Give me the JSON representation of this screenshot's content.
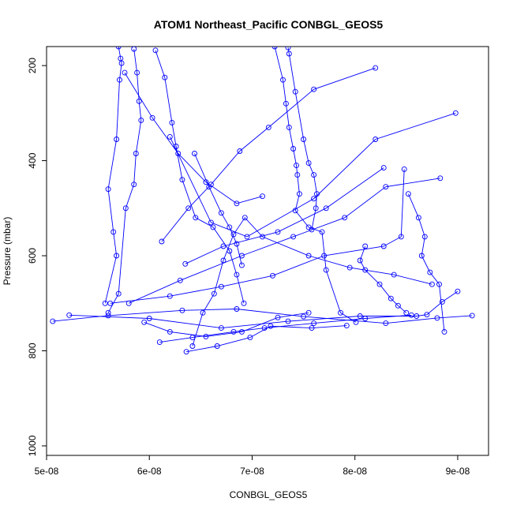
{
  "chart_data": {
    "type": "line",
    "title": "ATOM1 Northeast_Pacific CONBGL_GEOS5",
    "xlabel": "CONBGL_GEOS5",
    "ylabel": "Pressure (mbar)",
    "xlim": [
      5e-08,
      9.3e-08
    ],
    "ylim": [
      1020,
      160
    ],
    "y_reversed": true,
    "x_ticks": [
      5e-08,
      6e-08,
      7e-08,
      8e-08,
      9e-08
    ],
    "x_tick_labels": [
      "5e-08",
      "6e-08",
      "7e-08",
      "8e-08",
      "9e-08"
    ],
    "y_ticks": [
      200,
      400,
      600,
      800,
      1000
    ],
    "y_tick_labels": [
      "200",
      "400",
      "600",
      "800",
      "1000"
    ],
    "grid": false,
    "legend": "none",
    "colors": {
      "series": "#0000ff",
      "axes": "#000000",
      "background": "#ffffff"
    },
    "marker": "open-circle",
    "series": [
      {
        "x": [
          5.7e-08,
          5.72e-08,
          5.73e-08,
          5.71e-08,
          5.68e-08,
          5.6e-08,
          5.65e-08,
          5.68e-08,
          5.57e-08
        ],
        "y": [
          160,
          185,
          195,
          230,
          355,
          460,
          550,
          600,
          700
        ]
      },
      {
        "x": [
          5.85e-08,
          5.88e-08,
          5.9e-08,
          5.92e-08,
          5.87e-08,
          5.85e-08,
          5.77e-08,
          5.7e-08,
          5.6e-08
        ],
        "y": [
          165,
          215,
          275,
          315,
          385,
          450,
          500,
          680,
          720
        ]
      },
      {
        "x": [
          6.06e-08,
          6.15e-08,
          6.22e-08,
          6.26e-08,
          6.32e-08,
          6.45e-08,
          6.62e-08,
          6.78e-08,
          6.85e-08,
          6.92e-08
        ],
        "y": [
          168,
          225,
          320,
          370,
          440,
          520,
          540,
          590,
          640,
          700
        ]
      },
      {
        "x": [
          7.22e-08,
          7.3e-08,
          7.33e-08,
          7.36e-08,
          7.4e-08,
          7.43e-08,
          7.44e-08,
          7.46e-08,
          7.42e-08,
          7.55e-08,
          7.68e-08,
          7.72e-08,
          7.86e-08,
          8.01e-08
        ],
        "y": [
          160,
          230,
          280,
          330,
          375,
          410,
          430,
          470,
          505,
          540,
          550,
          630,
          720,
          740
        ]
      },
      {
        "x": [
          7.35e-08,
          7.36e-08,
          7.42e-08,
          7.5e-08,
          7.55e-08,
          7.6e-08,
          7.63e-08,
          7.62e-08,
          7.58e-08
        ],
        "y": [
          162,
          175,
          255,
          355,
          405,
          430,
          470,
          500,
          545
        ]
      },
      {
        "x": [
          5.06e-08,
          5.6e-08,
          6.32e-08,
          6.85e-08,
          7.5e-08,
          8.3e-08,
          8.8e-08,
          9.14e-08
        ],
        "y": [
          738,
          726,
          715,
          712,
          728,
          742,
          731,
          726
        ]
      },
      {
        "x": [
          5.22e-08,
          6e-08,
          6.7e-08,
          7.35e-08,
          8.05e-08,
          8.6e-08,
          8.7e-08,
          8.85e-08,
          9e-08
        ],
        "y": [
          725,
          732,
          752,
          738,
          727,
          727,
          724,
          697,
          675
        ]
      },
      {
        "x": [
          6.1e-08,
          6.42e-08,
          6.82e-08,
          7.12e-08,
          7.6e-08,
          8.1e-08,
          8.55e-08
        ],
        "y": [
          782,
          772,
          760,
          752,
          742,
          732,
          725
        ]
      },
      {
        "x": [
          6.36e-08,
          6.66e-08,
          6.98e-08,
          7.18e-08,
          7.58e-08,
          7.92e-08
        ],
        "y": [
          802,
          790,
          772,
          748,
          752,
          747
        ]
      },
      {
        "x": [
          5.62e-08,
          6.2e-08,
          6.7e-08,
          7.2e-08,
          7.7e-08,
          8.28e-08,
          8.45e-08,
          8.48e-08
        ],
        "y": [
          700,
          685,
          665,
          642,
          600,
          580,
          560,
          418
        ]
      },
      {
        "x": [
          5.8e-08,
          6.3e-08,
          6.9e-08,
          7.4e-08,
          7.9e-08,
          8.3e-08,
          8.83e-08
        ],
        "y": [
          700,
          652,
          600,
          560,
          520,
          455,
          437
        ]
      },
      {
        "x": [
          6.35e-08,
          6.72e-08,
          7.25e-08,
          7.72e-08,
          8.28e-08
        ],
        "y": [
          617,
          580,
          550,
          500,
          415
        ]
      },
      {
        "x": [
          6.2e-08,
          6.6e-08,
          6.95e-08,
          7.6e-08,
          8.2e-08,
          8.98e-08
        ],
        "y": [
          350,
          530,
          560,
          480,
          355,
          300
        ]
      },
      {
        "x": [
          6.12e-08,
          6.38e-08,
          6.6e-08,
          6.88e-08,
          7.16e-08,
          7.6e-08,
          8.2e-08
        ],
        "y": [
          570,
          500,
          450,
          380,
          330,
          250,
          205
        ]
      },
      {
        "x": [
          5.76e-08,
          6.03e-08,
          6.28e-08,
          6.55e-08,
          6.85e-08,
          7.1e-08
        ],
        "y": [
          215,
          310,
          385,
          445,
          490,
          475
        ]
      },
      {
        "x": [
          6.42e-08,
          6.52e-08,
          6.63e-08,
          6.72e-08,
          6.82e-08,
          6.93e-08,
          7.1e-08,
          7.55e-08,
          7.95e-08,
          8.38e-08,
          8.75e-08
        ],
        "y": [
          790,
          720,
          680,
          610,
          555,
          520,
          560,
          600,
          625,
          640,
          660
        ]
      },
      {
        "x": [
          8.52e-08,
          8.62e-08,
          8.68e-08,
          8.65e-08,
          8.73e-08,
          8.82e-08,
          8.87e-08
        ],
        "y": [
          470,
          520,
          560,
          600,
          635,
          660,
          760
        ]
      },
      {
        "x": [
          8.1e-08,
          8.05e-08,
          8.1e-08,
          8.24e-08,
          8.35e-08,
          8.42e-08,
          8.5e-08
        ],
        "y": [
          580,
          610,
          630,
          660,
          690,
          705,
          720
        ]
      },
      {
        "x": [
          5.95e-08,
          6.2e-08,
          6.55e-08,
          6.9e-08,
          7.25e-08,
          7.55e-08
        ],
        "y": [
          740,
          760,
          770,
          760,
          730,
          720
        ]
      },
      {
        "x": [
          6.44e-08,
          6.58e-08,
          6.7e-08,
          6.78e-08,
          6.85e-08,
          6.9e-08
        ],
        "y": [
          385,
          455,
          510,
          540,
          575,
          620
        ]
      }
    ]
  }
}
